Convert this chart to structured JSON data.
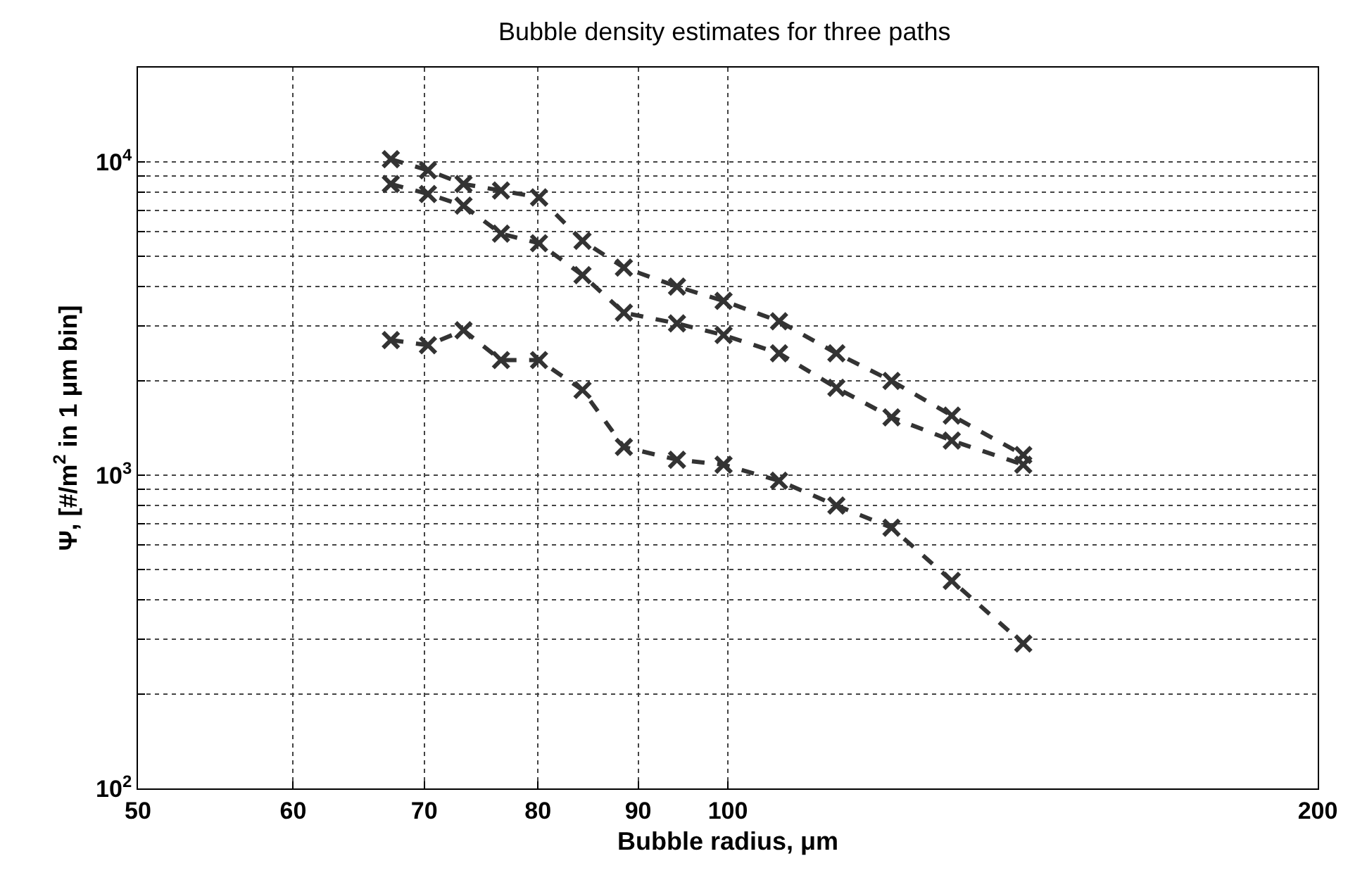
{
  "chart_data": {
    "type": "line",
    "title": "Bubble density estimates for three paths",
    "xlabel": "Bubble radius, μm",
    "ylabel": "Ψ, [#/m$^{2}$ in 1 μm bin]",
    "log": "xy",
    "grid": true,
    "marker": "cross",
    "line_style": "dashed",
    "xlim": [
      50,
      200
    ],
    "xticks": [
      50,
      60,
      70,
      80,
      90,
      100,
      200
    ],
    "ylim": [
      100,
      20000
    ],
    "yticks": [
      {
        "value": 100,
        "label": "10$^{2}$"
      },
      {
        "value": 200,
        "label": null
      },
      {
        "value": 300,
        "label": null
      },
      {
        "value": 400,
        "label": null
      },
      {
        "value": 500,
        "label": null
      },
      {
        "value": 600,
        "label": null
      },
      {
        "value": 700,
        "label": null
      },
      {
        "value": 800,
        "label": null
      },
      {
        "value": 900,
        "label": null
      },
      {
        "value": 1000,
        "label": "10$^{3}$"
      },
      {
        "value": 2000,
        "label": null
      },
      {
        "value": 3000,
        "label": null
      },
      {
        "value": 4000,
        "label": null
      },
      {
        "value": 5000,
        "label": null
      },
      {
        "value": 6000,
        "label": null
      },
      {
        "value": 7000,
        "label": null
      },
      {
        "value": 8000,
        "label": null
      },
      {
        "value": 9000,
        "label": null
      },
      {
        "value": 10000,
        "label": "10$^{4}$"
      }
    ],
    "x": [
      67.3,
      70.3,
      73.3,
      76.6,
      80.1,
      84.3,
      88.5,
      94.2,
      99.5,
      106.2,
      113.6,
      121.2,
      130.1,
      141.5
    ],
    "series": [
      {
        "color": "#333333",
        "values": [
          10200,
          9400,
          8500,
          8100,
          7700,
          5600,
          4600,
          4000,
          3600,
          3100,
          2450,
          2000,
          1550,
          1160
        ]
      },
      {
        "color": "#333333",
        "values": [
          8500,
          7900,
          7250,
          5900,
          5500,
          4350,
          3300,
          3050,
          2800,
          2450,
          1900,
          1530,
          1290,
          1080
        ]
      },
      {
        "color": "#333333",
        "values": [
          2700,
          2600,
          2900,
          2330,
          2330,
          1870,
          1230,
          1120,
          1080,
          960,
          800,
          680,
          460,
          290
        ]
      }
    ]
  }
}
